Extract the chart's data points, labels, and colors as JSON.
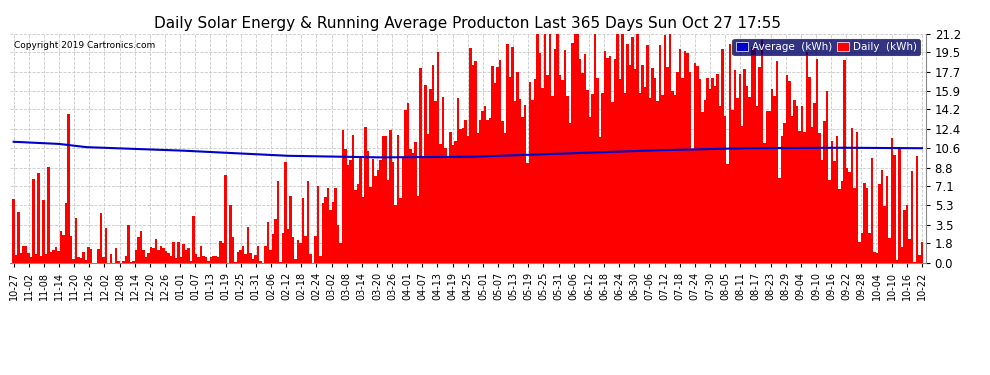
{
  "title": "Daily Solar Energy & Running Average Producton Last 365 Days Sun Oct 27 17:55",
  "copyright": "Copyright 2019 Cartronics.com",
  "ylabel_right_ticks": [
    0.0,
    1.8,
    3.5,
    5.3,
    7.1,
    8.8,
    10.6,
    12.4,
    14.2,
    15.9,
    17.7,
    19.5,
    21.2
  ],
  "ylim": [
    0,
    21.2
  ],
  "bar_color": "#ff0000",
  "line_color": "#0000cc",
  "background_color": "#ffffff",
  "grid_color": "#bbbbbb",
  "title_fontsize": 11,
  "legend_labels": [
    "Average  (kWh)",
    "Daily  (kWh)"
  ],
  "legend_colors_bg": [
    "#0000cc",
    "#ff0000"
  ],
  "x_labels": [
    "10-27",
    "11-02",
    "11-08",
    "11-14",
    "11-20",
    "11-26",
    "12-02",
    "12-08",
    "12-14",
    "12-20",
    "12-26",
    "01-01",
    "01-07",
    "01-13",
    "01-19",
    "01-25",
    "01-31",
    "02-06",
    "02-12",
    "02-18",
    "02-24",
    "03-02",
    "03-08",
    "03-14",
    "03-20",
    "03-26",
    "04-01",
    "04-07",
    "04-13",
    "04-19",
    "04-25",
    "05-01",
    "05-07",
    "05-13",
    "05-19",
    "05-25",
    "05-31",
    "06-06",
    "06-12",
    "06-18",
    "06-24",
    "06-30",
    "07-06",
    "07-12",
    "07-18",
    "07-24",
    "07-30",
    "08-05",
    "08-11",
    "08-17",
    "08-23",
    "08-29",
    "09-04",
    "09-10",
    "09-16",
    "09-22",
    "09-28",
    "10-04",
    "10-10",
    "10-16",
    "10-22"
  ]
}
